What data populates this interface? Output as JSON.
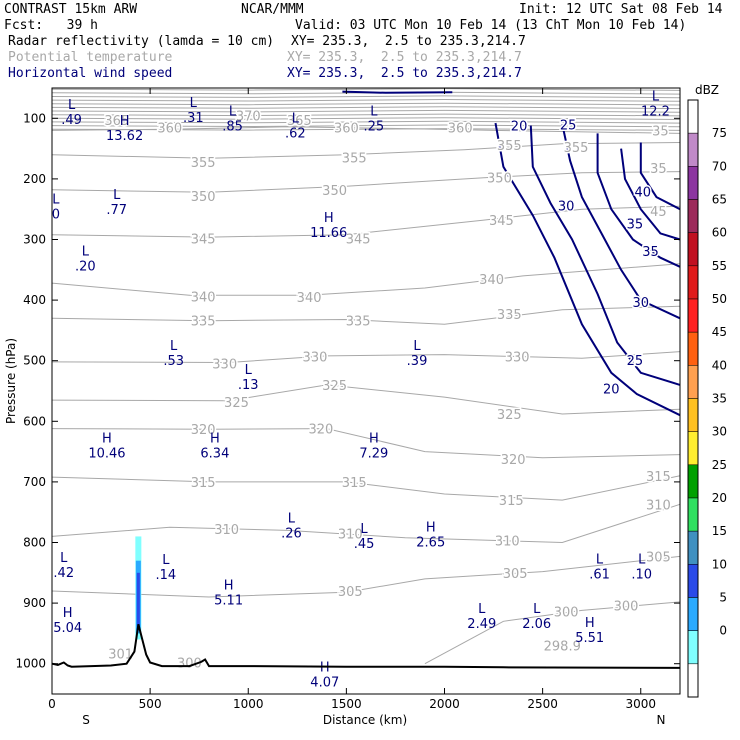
{
  "header": {
    "line1_left": "CONTRAST 15km ARW",
    "line1_mid": "NCAR/MMM",
    "line1_right": "Init: 12 UTC Sat 08 Feb 14",
    "line2_left": "Fcst:   39 h",
    "line2_right": "Valid: 03 UTC Mon 10 Feb 14 (13 ChT Mon 10 Feb 14)",
    "field1_name": "Radar reflectivity (lamda = 10 cm)",
    "field1_xy": "XY= 235.3,  2.5 to 235.3,214.7",
    "field2_name": "Potential temperature",
    "field2_xy": "XY= 235.3,  2.5 to 235.3,214.7",
    "field3_name": "Horizontal wind speed",
    "field3_xy": "XY= 235.3,  2.5 to 235.3,214.7"
  },
  "colors": {
    "theta": "#a8a8a8",
    "wind": "#00007a",
    "terrain": "#000000",
    "frame": "#000000"
  },
  "chart_data": {
    "type": "cross-section",
    "xlabel": "Distance (km)",
    "ylabel": "Pressure (hPa)",
    "xlim": [
      0,
      3200
    ],
    "ylim": [
      1050,
      50
    ],
    "xticks": [
      0,
      500,
      1000,
      1500,
      2000,
      2500,
      3000
    ],
    "yticks": [
      100,
      200,
      300,
      400,
      500,
      600,
      700,
      800,
      900,
      1000
    ],
    "x_end_labels": {
      "left": "S",
      "right": "N"
    },
    "colorbar": {
      "title": "dBZ",
      "levels": [
        "75",
        "70",
        "65",
        "60",
        "55",
        "50",
        "45",
        "40",
        "35",
        "30",
        "25",
        "20",
        "15",
        "10",
        "5",
        "0"
      ],
      "colors": [
        "#ffffff",
        "#c08ac8",
        "#8c35a0",
        "#9c2a5a",
        "#c01020",
        "#e01a1a",
        "#ff2020",
        "#ff6010",
        "#ffa050",
        "#ffc020",
        "#ffee30",
        "#00a000",
        "#30e060",
        "#4090c0",
        "#2a4ae8",
        "#2aaaff",
        "#80ffff",
        "#ffffff"
      ]
    },
    "theta_labels": [
      {
        "text": "360",
        "x": 600,
        "p": 115
      },
      {
        "text": "360",
        "x": 1500,
        "p": 115
      },
      {
        "text": "360",
        "x": 2080,
        "p": 115
      },
      {
        "text": "365",
        "x": 330,
        "p": 103
      },
      {
        "text": "365",
        "x": 1260,
        "p": 103
      },
      {
        "text": "370",
        "x": 1000,
        "p": 95
      },
      {
        "text": "355",
        "x": 1540,
        "p": 165
      },
      {
        "text": "355",
        "x": 770,
        "p": 172
      },
      {
        "text": "355",
        "x": 2330,
        "p": 144
      },
      {
        "text": "355",
        "x": 2670,
        "p": 147
      },
      {
        "text": "350",
        "x": 770,
        "p": 228
      },
      {
        "text": "350",
        "x": 1440,
        "p": 218
      },
      {
        "text": "350",
        "x": 2280,
        "p": 198
      },
      {
        "text": "345",
        "x": 770,
        "p": 298
      },
      {
        "text": "345",
        "x": 1560,
        "p": 298
      },
      {
        "text": "345",
        "x": 2290,
        "p": 268
      },
      {
        "text": "340",
        "x": 770,
        "p": 394
      },
      {
        "text": "340",
        "x": 1310,
        "p": 395
      },
      {
        "text": "340",
        "x": 2240,
        "p": 365
      },
      {
        "text": "335",
        "x": 770,
        "p": 434
      },
      {
        "text": "335",
        "x": 1560,
        "p": 434
      },
      {
        "text": "335",
        "x": 2330,
        "p": 423
      },
      {
        "text": "330",
        "x": 880,
        "p": 505
      },
      {
        "text": "330",
        "x": 1340,
        "p": 493
      },
      {
        "text": "330",
        "x": 2370,
        "p": 493
      },
      {
        "text": "325",
        "x": 940,
        "p": 568
      },
      {
        "text": "325",
        "x": 1440,
        "p": 540
      },
      {
        "text": "325",
        "x": 2330,
        "p": 588
      },
      {
        "text": "320",
        "x": 770,
        "p": 613
      },
      {
        "text": "320",
        "x": 1370,
        "p": 612
      },
      {
        "text": "320",
        "x": 2350,
        "p": 662
      },
      {
        "text": "315",
        "x": 770,
        "p": 700
      },
      {
        "text": "315",
        "x": 1540,
        "p": 700
      },
      {
        "text": "315",
        "x": 2340,
        "p": 730
      },
      {
        "text": "315",
        "x": 3090,
        "p": 690
      },
      {
        "text": "310",
        "x": 890,
        "p": 778
      },
      {
        "text": "310",
        "x": 1520,
        "p": 785
      },
      {
        "text": "310",
        "x": 2320,
        "p": 797
      },
      {
        "text": "310",
        "x": 3090,
        "p": 737
      },
      {
        "text": "305",
        "x": 1520,
        "p": 880
      },
      {
        "text": "305",
        "x": 2360,
        "p": 850
      },
      {
        "text": "305",
        "x": 3090,
        "p": 823
      },
      {
        "text": "300",
        "x": 2620,
        "p": 914
      },
      {
        "text": "300",
        "x": 2925,
        "p": 904
      },
      {
        "text": "301",
        "x": 350,
        "p": 983
      },
      {
        "text": "300",
        "x": 700,
        "p": 998
      },
      {
        "text": "298.9",
        "x": 2600,
        "p": 970
      },
      {
        "text": "35",
        "x": 3100,
        "p": 120
      },
      {
        "text": "35",
        "x": 3090,
        "p": 182
      },
      {
        "text": "45",
        "x": 3090,
        "p": 253
      }
    ],
    "wind_labels": [
      {
        "text": "20",
        "x": 2380,
        "p": 112
      },
      {
        "text": "25",
        "x": 2630,
        "p": 110
      },
      {
        "text": "40",
        "x": 3010,
        "p": 221
      },
      {
        "text": "30",
        "x": 2620,
        "p": 244
      },
      {
        "text": "35",
        "x": 2970,
        "p": 274
      },
      {
        "text": "35",
        "x": 3050,
        "p": 319
      },
      {
        "text": "30",
        "x": 3000,
        "p": 403
      },
      {
        "text": "25",
        "x": 2970,
        "p": 499
      },
      {
        "text": "20",
        "x": 2850,
        "p": 546
      }
    ],
    "extrema": [
      {
        "type": "L",
        "value": ".49",
        "x": 100,
        "p": 76
      },
      {
        "type": "L",
        "value": ".31",
        "x": 720,
        "p": 73
      },
      {
        "type": "L",
        "value": ".85",
        "x": 920,
        "p": 87
      },
      {
        "type": "L",
        "value": ".62",
        "x": 1240,
        "p": 99
      },
      {
        "type": "L",
        "value": ".25",
        "x": 1640,
        "p": 87
      },
      {
        "type": "L",
        "value": "12.2",
        "x": 3075,
        "p": 62
      },
      {
        "type": "H",
        "value": "13.62",
        "x": 370,
        "p": 103
      },
      {
        "type": "L",
        "value": ".77",
        "x": 330,
        "p": 225
      },
      {
        "type": "L",
        "value": "0",
        "x": 20,
        "p": 232
      },
      {
        "type": "H",
        "value": "11.66",
        "x": 1410,
        "p": 263
      },
      {
        "type": "L",
        "value": ".20",
        "x": 170,
        "p": 318
      },
      {
        "type": "L",
        "value": ".53",
        "x": 620,
        "p": 474
      },
      {
        "type": "L",
        "value": ".39",
        "x": 1860,
        "p": 474
      },
      {
        "type": "L",
        "value": ".13",
        "x": 1000,
        "p": 514
      },
      {
        "type": "H",
        "value": "10.46",
        "x": 280,
        "p": 627
      },
      {
        "type": "H",
        "value": "6.34",
        "x": 830,
        "p": 627
      },
      {
        "type": "H",
        "value": "7.29",
        "x": 1640,
        "p": 627
      },
      {
        "type": "L",
        "value": ".26",
        "x": 1220,
        "p": 759
      },
      {
        "type": "L",
        "value": ".45",
        "x": 1590,
        "p": 776
      },
      {
        "type": "H",
        "value": "2.65",
        "x": 1930,
        "p": 774
      },
      {
        "type": "L",
        "value": ".42",
        "x": 60,
        "p": 824
      },
      {
        "type": "L",
        "value": ".14",
        "x": 580,
        "p": 827
      },
      {
        "type": "L",
        "value": ".61",
        "x": 2790,
        "p": 826
      },
      {
        "type": "L",
        "value": ".10",
        "x": 3005,
        "p": 826
      },
      {
        "type": "H",
        "value": "5.11",
        "x": 900,
        "p": 869
      },
      {
        "type": "L",
        "value": "2.49",
        "x": 2190,
        "p": 908
      },
      {
        "type": "L",
        "value": "2.06",
        "x": 2470,
        "p": 908
      },
      {
        "type": "H",
        "value": "5.51",
        "x": 2740,
        "p": 931
      },
      {
        "type": "H",
        "value": "5.04",
        "x": 80,
        "p": 915
      },
      {
        "type": "H",
        "value": "4.07",
        "x": 1390,
        "p": 1005
      }
    ],
    "terrain_profile": {
      "x": [
        0,
        30,
        60,
        80,
        100,
        200,
        300,
        380,
        420,
        440,
        460,
        480,
        500,
        560,
        700,
        760,
        780,
        800,
        1000,
        1500,
        2000,
        2300,
        3200
      ],
      "p": [
        1000,
        1002,
        998,
        1003,
        1005,
        1004,
        1003,
        1000,
        980,
        935,
        960,
        985,
        998,
        1004,
        1004,
        997,
        993,
        1004,
        1004,
        1005,
        1005,
        1006,
        1007
      ]
    }
  }
}
